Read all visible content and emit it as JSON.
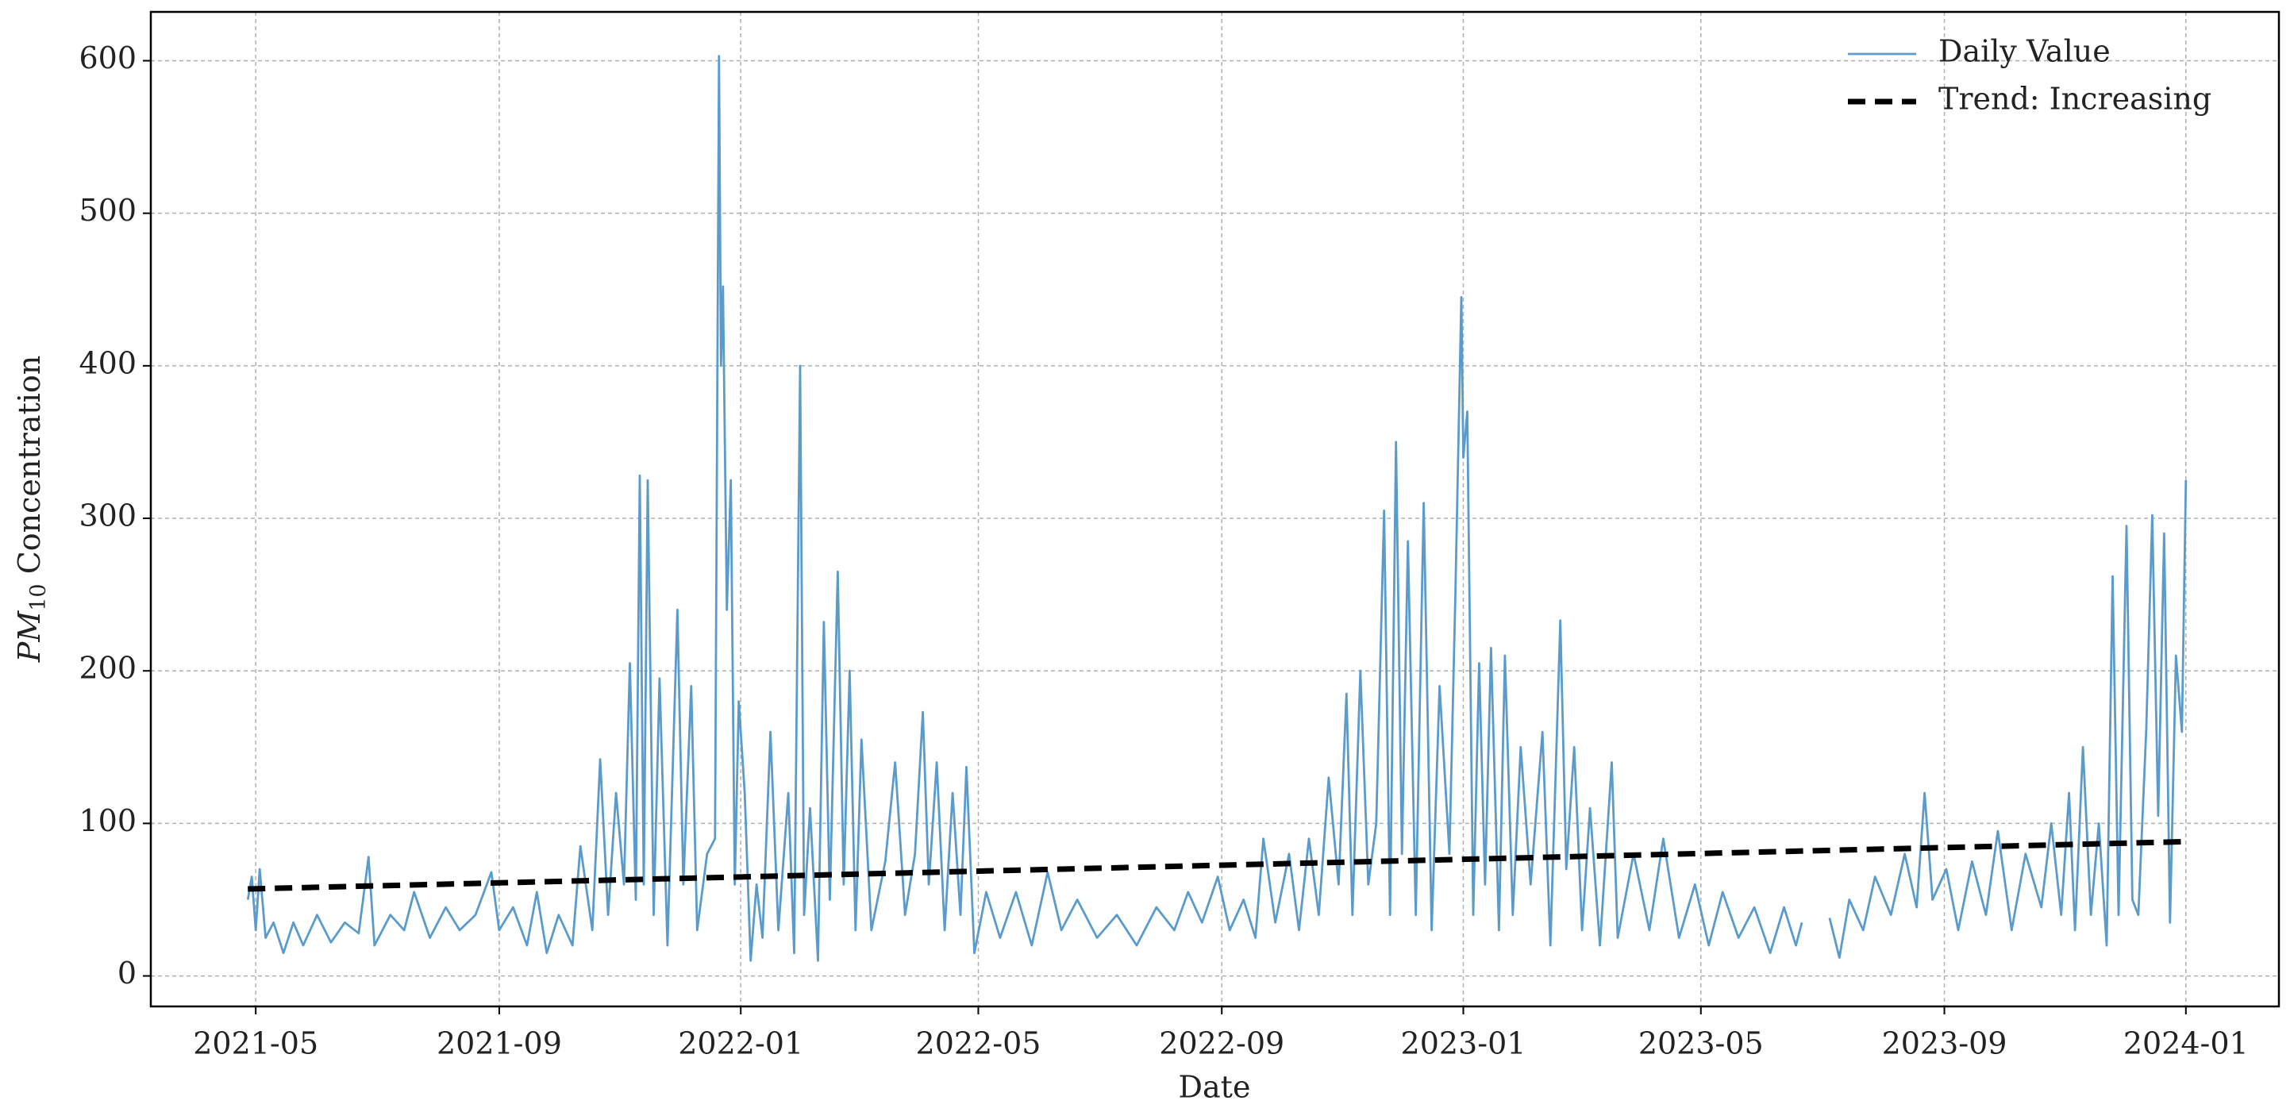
{
  "chart_data": {
    "type": "line",
    "xlabel": "Date",
    "ylabel_parts": [
      "PM",
      "10",
      " Concentration"
    ],
    "xlim": [
      "2021-03-09",
      "2024-02-17"
    ],
    "xticks": [
      "2021-05",
      "2021-09",
      "2022-01",
      "2022-05",
      "2022-09",
      "2023-01",
      "2023-05",
      "2023-09",
      "2024-01"
    ],
    "ylim": [
      -20,
      632
    ],
    "yticks": [
      0,
      100,
      200,
      300,
      400,
      500,
      600
    ],
    "grid": true,
    "legend": "upper right",
    "series": [
      {
        "name": "Daily Value",
        "color": "#5b9bcb",
        "dash": false,
        "x": [
          "2021-04-27",
          "2021-04-29",
          "2021-05-01",
          "2021-05-03",
          "2021-05-06",
          "2021-05-10",
          "2021-05-15",
          "2021-05-20",
          "2021-05-25",
          "2021-06-01",
          "2021-06-08",
          "2021-06-15",
          "2021-06-22",
          "2021-06-27",
          "2021-06-30",
          "2021-07-08",
          "2021-07-15",
          "2021-07-20",
          "2021-07-28",
          "2021-08-05",
          "2021-08-12",
          "2021-08-20",
          "2021-08-28",
          "2021-09-01",
          "2021-09-08",
          "2021-09-15",
          "2021-09-20",
          "2021-09-25",
          "2021-10-01",
          "2021-10-08",
          "2021-10-12",
          "2021-10-18",
          "2021-10-22",
          "2021-10-26",
          "2021-10-30",
          "2021-11-03",
          "2021-11-06",
          "2021-11-09",
          "2021-11-11",
          "2021-11-13",
          "2021-11-15",
          "2021-11-18",
          "2021-11-21",
          "2021-11-25",
          "2021-11-30",
          "2021-12-03",
          "2021-12-07",
          "2021-12-10",
          "2021-12-15",
          "2021-12-19",
          "2021-12-21",
          "2021-12-22",
          "2021-12-23",
          "2021-12-25",
          "2021-12-27",
          "2021-12-29",
          "2021-12-31",
          "2022-01-03",
          "2022-01-06",
          "2022-01-09",
          "2022-01-12",
          "2022-01-16",
          "2022-01-20",
          "2022-01-25",
          "2022-01-28",
          "2022-01-31",
          "2022-02-02",
          "2022-02-05",
          "2022-02-09",
          "2022-02-12",
          "2022-02-15",
          "2022-02-19",
          "2022-02-22",
          "2022-02-25",
          "2022-02-28",
          "2022-03-03",
          "2022-03-08",
          "2022-03-15",
          "2022-03-20",
          "2022-03-25",
          "2022-03-30",
          "2022-04-03",
          "2022-04-06",
          "2022-04-10",
          "2022-04-14",
          "2022-04-18",
          "2022-04-22",
          "2022-04-25",
          "2022-04-29",
          "2022-05-05",
          "2022-05-12",
          "2022-05-20",
          "2022-05-28",
          "2022-06-05",
          "2022-06-12",
          "2022-06-20",
          "2022-06-30",
          "2022-07-10",
          "2022-07-20",
          "2022-07-30",
          "2022-08-08",
          "2022-08-15",
          "2022-08-22",
          "2022-08-30",
          "2022-09-05",
          "2022-09-12",
          "2022-09-18",
          "2022-09-22",
          "2022-09-28",
          "2022-10-05",
          "2022-10-10",
          "2022-10-15",
          "2022-10-20",
          "2022-10-25",
          "2022-10-30",
          "2022-11-03",
          "2022-11-06",
          "2022-11-10",
          "2022-11-14",
          "2022-11-18",
          "2022-11-22",
          "2022-11-25",
          "2022-11-28",
          "2022-12-01",
          "2022-12-04",
          "2022-12-08",
          "2022-12-12",
          "2022-12-16",
          "2022-12-20",
          "2022-12-25",
          "2022-12-28",
          "2022-12-31",
          "2023-01-01",
          "2023-01-03",
          "2023-01-06",
          "2023-01-09",
          "2023-01-12",
          "2023-01-15",
          "2023-01-19",
          "2023-01-22",
          "2023-01-26",
          "2023-01-30",
          "2023-02-04",
          "2023-02-10",
          "2023-02-14",
          "2023-02-19",
          "2023-02-22",
          "2023-02-26",
          "2023-03-02",
          "2023-03-06",
          "2023-03-11",
          "2023-03-17",
          "2023-03-20",
          "2023-03-28",
          "2023-04-05",
          "2023-04-12",
          "2023-04-20",
          "2023-04-28",
          "2023-05-05",
          "2023-05-12",
          "2023-05-20",
          "2023-05-28",
          "2023-06-05",
          "2023-06-12",
          "2023-06-18",
          "2023-06-21",
          "2023-06-28",
          "2023-07-05",
          "2023-07-10",
          "2023-07-15",
          "2023-07-22",
          "2023-07-28",
          "2023-08-05",
          "2023-08-12",
          "2023-08-18",
          "2023-08-22",
          "2023-08-26",
          "2023-09-02",
          "2023-09-08",
          "2023-09-15",
          "2023-09-22",
          "2023-09-28",
          "2023-10-05",
          "2023-10-12",
          "2023-10-20",
          "2023-10-25",
          "2023-10-30",
          "2023-11-03",
          "2023-11-06",
          "2023-11-10",
          "2023-11-14",
          "2023-11-18",
          "2023-11-22",
          "2023-11-25",
          "2023-11-28",
          "2023-12-02",
          "2023-12-05",
          "2023-12-08",
          "2023-12-12",
          "2023-12-15",
          "2023-12-18",
          "2023-12-21",
          "2023-12-24",
          "2023-12-27",
          "2023-12-30",
          "2024-01-01"
        ],
        "values": [
          50,
          65,
          30,
          70,
          25,
          35,
          15,
          35,
          20,
          40,
          22,
          35,
          28,
          78,
          20,
          40,
          30,
          55,
          25,
          45,
          30,
          40,
          68,
          30,
          45,
          20,
          55,
          15,
          40,
          20,
          85,
          30,
          142,
          40,
          120,
          60,
          205,
          50,
          328,
          60,
          325,
          40,
          195,
          20,
          240,
          60,
          190,
          30,
          80,
          90,
          603,
          400,
          452,
          240,
          325,
          60,
          180,
          120,
          10,
          60,
          25,
          160,
          30,
          120,
          15,
          400,
          40,
          110,
          10,
          232,
          50,
          265,
          60,
          200,
          30,
          155,
          30,
          75,
          140,
          40,
          80,
          173,
          60,
          140,
          30,
          120,
          40,
          137,
          15,
          55,
          25,
          55,
          20,
          68,
          30,
          50,
          25,
          40,
          20,
          45,
          30,
          55,
          35,
          65,
          30,
          50,
          25,
          90,
          35,
          80,
          30,
          90,
          40,
          130,
          60,
          185,
          40,
          200,
          60,
          100,
          305,
          40,
          350,
          80,
          285,
          40,
          310,
          30,
          190,
          80,
          250,
          445,
          340,
          370,
          40,
          205,
          60,
          215,
          30,
          210,
          40,
          150,
          60,
          160,
          20,
          233,
          70,
          150,
          30,
          110,
          20,
          140,
          25,
          80,
          30,
          90,
          25,
          60,
          20,
          55,
          25,
          45,
          15,
          45,
          20,
          35,
          null,
          38,
          12,
          50,
          30,
          65,
          40,
          80,
          45,
          120,
          50,
          70,
          30,
          75,
          40,
          95,
          30,
          80,
          45,
          100,
          40,
          120,
          30,
          150,
          40,
          100,
          20,
          262,
          40,
          295,
          50,
          40,
          162,
          302,
          105,
          290,
          35,
          210,
          160,
          325
        ]
      },
      {
        "name": "Trend: Increasing",
        "color": "#000000",
        "dash": true,
        "x": [
          "2021-04-27",
          "2024-01-01"
        ],
        "values": [
          57,
          88
        ]
      }
    ]
  }
}
